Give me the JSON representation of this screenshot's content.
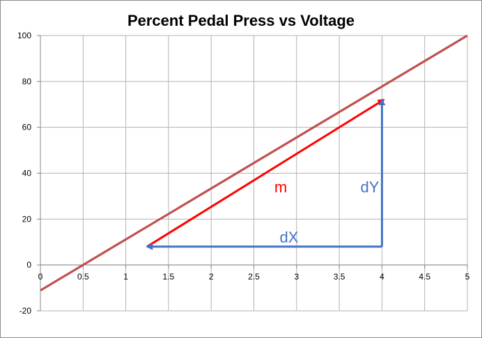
{
  "chart_data": {
    "type": "line",
    "title": "Percent Pedal Press vs Voltage",
    "xlabel": "",
    "ylabel": "",
    "xlim": [
      0,
      5
    ],
    "ylim": [
      -20,
      100
    ],
    "x_ticks": [
      0,
      0.5,
      1,
      1.5,
      2,
      2.5,
      3,
      3.5,
      4,
      4.5,
      5
    ],
    "x_tick_labels": [
      "0",
      "0.5",
      "1",
      "1.5",
      "2",
      "2.5",
      "3",
      "3.5",
      "4",
      "4.5",
      "5"
    ],
    "y_ticks": [
      -20,
      0,
      20,
      40,
      60,
      80,
      100
    ],
    "y_tick_labels": [
      "-20",
      "0",
      "20",
      "40",
      "60",
      "80",
      "100"
    ],
    "grid": true,
    "legend": "none",
    "series": [
      {
        "x": [
          0,
          5
        ],
        "y": [
          -11.1,
          100
        ],
        "color": "#c0504d"
      }
    ],
    "annotations": {
      "slope_arrow": {
        "label": "m",
        "color": "#ff0000",
        "from": [
          1.25,
          8
        ],
        "to": [
          4.02,
          72
        ]
      },
      "dx_arrow": {
        "label": "dX",
        "color": "#4472c4",
        "from": [
          4.0,
          8
        ],
        "to": [
          1.25,
          8
        ]
      },
      "dy_arrow": {
        "label": "dY",
        "color": "#4472c4",
        "from": [
          4.0,
          8
        ],
        "to": [
          4.0,
          72
        ]
      }
    },
    "colors": {
      "grid": "#b3b3b3",
      "axis": "#868686"
    }
  }
}
